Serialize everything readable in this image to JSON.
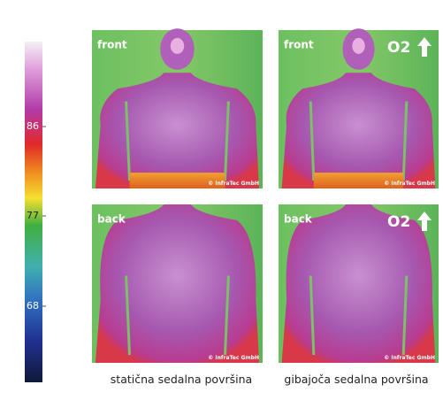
{
  "scale": {
    "labels": [
      "86",
      "77",
      "68"
    ]
  },
  "panels": [
    {
      "label": "front",
      "credit": "© InfraTec GmbH"
    },
    {
      "label": "front",
      "badge": "O2",
      "credit": "© InfraTec GmbH"
    },
    {
      "label": "back",
      "credit": "© InfraTec GmbH"
    },
    {
      "label": "back",
      "badge": "O2",
      "credit": "© InfraTec GmbH"
    }
  ],
  "captions": [
    "statična sedalna površina",
    "gibajoča sedalna površina"
  ]
}
